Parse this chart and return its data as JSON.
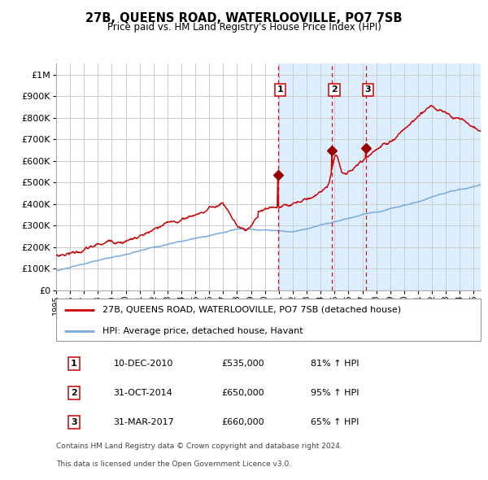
{
  "title": "27B, QUEENS ROAD, WATERLOOVILLE, PO7 7SB",
  "subtitle": "Price paid vs. HM Land Registry's House Price Index (HPI)",
  "legend_line1": "27B, QUEENS ROAD, WATERLOOVILLE, PO7 7SB (detached house)",
  "legend_line2": "HPI: Average price, detached house, Havant",
  "footnote1": "Contains HM Land Registry data © Crown copyright and database right 2024.",
  "footnote2": "This data is licensed under the Open Government Licence v3.0.",
  "red_color": "#cc0000",
  "blue_color": "#77aadd",
  "bg_shade_color": "#ddeeff",
  "grid_color": "#cccccc",
  "transactions": [
    {
      "num": 1,
      "date": "10-DEC-2010",
      "price": "£535,000",
      "pct": "81% ↑ HPI",
      "x_year": 2010.94,
      "y_val": 535000
    },
    {
      "num": 2,
      "date": "31-OCT-2014",
      "price": "£650,000",
      "pct": "95% ↑ HPI",
      "x_year": 2014.83,
      "y_val": 650000
    },
    {
      "num": 3,
      "date": "31-MAR-2017",
      "price": "£660,000",
      "pct": "65% ↑ HPI",
      "x_year": 2017.25,
      "y_val": 660000
    }
  ],
  "ylim": [
    0,
    1050000
  ],
  "xlim_start": 1995.0,
  "xlim_end": 2025.5,
  "shade_start": 2010.94
}
